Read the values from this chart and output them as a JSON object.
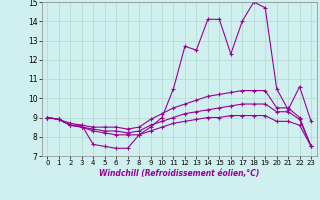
{
  "xlabel": "Windchill (Refroidissement éolien,°C)",
  "background_color": "#cff0ee",
  "grid_color": "#b0d8cc",
  "line_color": "#990099",
  "xlim": [
    -0.5,
    23.5
  ],
  "ylim": [
    7,
    15
  ],
  "xticks": [
    0,
    1,
    2,
    3,
    4,
    5,
    6,
    7,
    8,
    9,
    10,
    11,
    12,
    13,
    14,
    15,
    16,
    17,
    18,
    19,
    20,
    21,
    22,
    23
  ],
  "yticks": [
    7,
    8,
    9,
    10,
    11,
    12,
    13,
    14,
    15
  ],
  "line1_x": [
    0,
    1,
    2,
    3,
    4,
    5,
    6,
    7,
    8,
    9,
    10,
    11,
    12,
    13,
    14,
    15,
    16,
    17,
    18,
    19,
    20,
    21,
    22,
    23
  ],
  "line1_y": [
    9.0,
    8.9,
    8.6,
    8.6,
    7.6,
    7.5,
    7.4,
    7.4,
    8.1,
    8.5,
    9.0,
    10.5,
    12.7,
    12.5,
    14.1,
    14.1,
    12.3,
    14.0,
    15.0,
    14.7,
    10.5,
    9.4,
    10.6,
    8.8
  ],
  "line2_x": [
    0,
    1,
    2,
    3,
    4,
    5,
    6,
    7,
    8,
    9,
    10,
    11,
    12,
    13,
    14,
    15,
    16,
    17,
    18,
    19,
    20,
    21,
    22,
    23
  ],
  "line2_y": [
    9.0,
    8.9,
    8.7,
    8.6,
    8.5,
    8.5,
    8.5,
    8.4,
    8.5,
    8.9,
    9.2,
    9.5,
    9.7,
    9.9,
    10.1,
    10.2,
    10.3,
    10.4,
    10.4,
    10.4,
    9.5,
    9.5,
    9.0,
    7.5
  ],
  "line3_x": [
    0,
    1,
    2,
    3,
    4,
    5,
    6,
    7,
    8,
    9,
    10,
    11,
    12,
    13,
    14,
    15,
    16,
    17,
    18,
    19,
    20,
    21,
    22,
    23
  ],
  "line3_y": [
    9.0,
    8.9,
    8.6,
    8.5,
    8.4,
    8.3,
    8.3,
    8.2,
    8.3,
    8.6,
    8.8,
    9.0,
    9.2,
    9.3,
    9.4,
    9.5,
    9.6,
    9.7,
    9.7,
    9.7,
    9.3,
    9.3,
    8.9,
    7.5
  ],
  "line4_x": [
    0,
    1,
    2,
    3,
    4,
    5,
    6,
    7,
    8,
    9,
    10,
    11,
    12,
    13,
    14,
    15,
    16,
    17,
    18,
    19,
    20,
    21,
    22,
    23
  ],
  "line4_y": [
    9.0,
    8.9,
    8.6,
    8.5,
    8.3,
    8.2,
    8.1,
    8.1,
    8.1,
    8.3,
    8.5,
    8.7,
    8.8,
    8.9,
    9.0,
    9.0,
    9.1,
    9.1,
    9.1,
    9.1,
    8.8,
    8.8,
    8.6,
    7.5
  ]
}
